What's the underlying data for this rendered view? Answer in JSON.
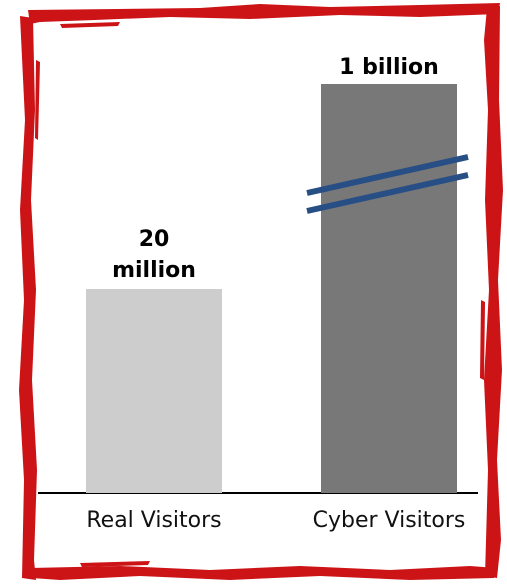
{
  "chart_data": {
    "type": "bar",
    "categories": [
      "Real Visitors",
      "Cyber Visitors"
    ],
    "values": [
      20000000,
      1000000000
    ],
    "value_labels": [
      [
        "20",
        "million"
      ],
      [
        "1 billion"
      ]
    ],
    "axis_break": true,
    "title": "",
    "xlabel": "",
    "ylabel": "",
    "grid": false,
    "legend": "none"
  },
  "colors": {
    "frame": "#cc1417",
    "bar_real": "#cdcdcd",
    "bar_cyber": "#787878",
    "break_lines": "#274e85",
    "axis": "#000000"
  }
}
